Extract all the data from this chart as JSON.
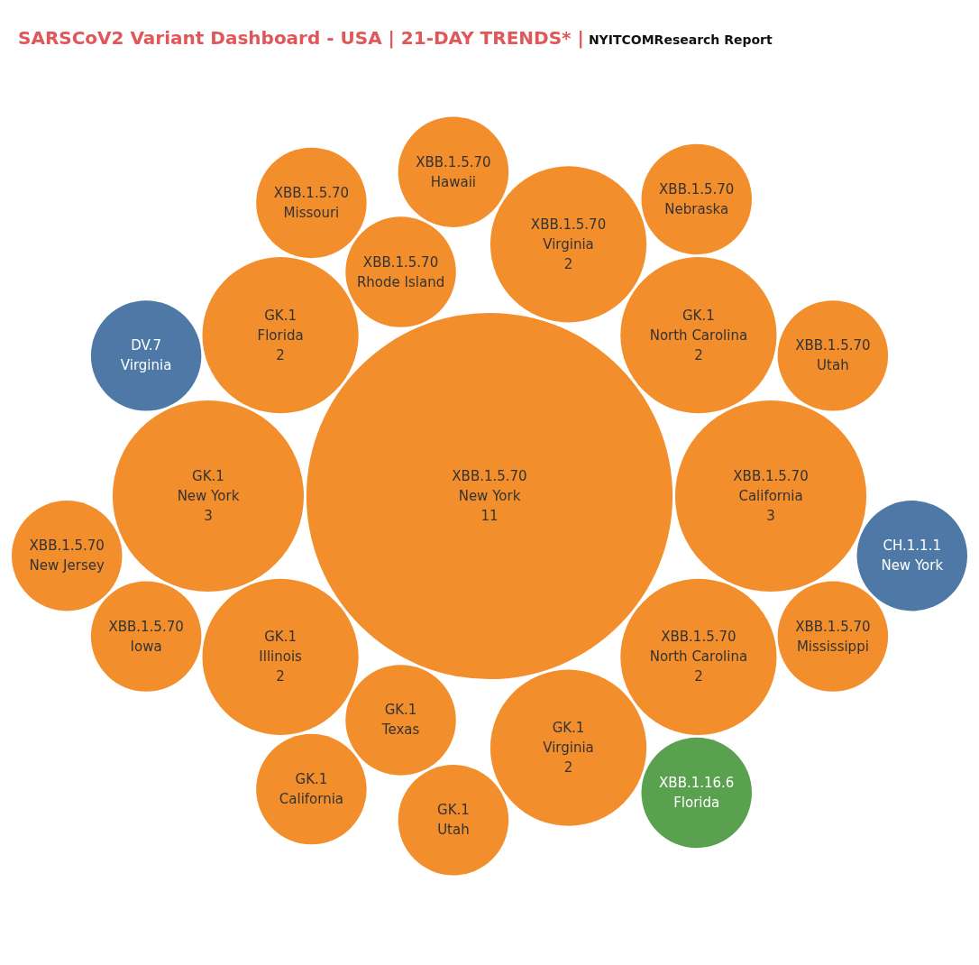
{
  "chart_data": {
    "type": "other",
    "title": "SARSCoV2 Variant Dashboard - USA | 21-DAY TRENDS* |",
    "subtitle": "NYITCOMResearch Report",
    "categories": [
      "XBB.1.5.70\nNorth Carolina",
      "XBB.1.5.70\nRhode Island",
      "GK.1\nTexas",
      "DV.7\nVirginia",
      "GK.1\nNorth Carolina",
      "GK.1\nIllinois",
      "XBB.1.5.70\nIowa",
      "XBB.1.5.70\nMississippi",
      "XBB.1.5.70\nUtah",
      "XBB.1.5.70\nHawaii",
      "GK.1\nUtah",
      "GK.1\nCalifornia",
      "XBB.1.5.70\nCalifornia",
      "XBB.1.5.70\nMissouri",
      "XBB.1.16.6\nFlorida",
      "XBB.1.5.70\nNebraska",
      "GK.1\nFlorida",
      "XBB.1.5.70\nNew Jersey",
      "XBB.1.5.70\nNew York",
      "GK.1\nVirginia",
      "CH.1.1.1\nNew York",
      "GK.1\nNew York",
      "XBB.1.5.70\nVirginia"
    ],
    "values": [
      2,
      null,
      null,
      null,
      2,
      2,
      null,
      null,
      null,
      null,
      null,
      null,
      3,
      null,
      null,
      null,
      2,
      null,
      11,
      2,
      null,
      3,
      2
    ],
    "data_labels": true,
    "colors": [
      "#f28e2b",
      "#f28e2b",
      "#f28e2b",
      "#4e79a7",
      "#f28e2b",
      "#f28e2b",
      "#f28e2b",
      "#f28e2b",
      "#f28e2b",
      "#f28e2b",
      "#f28e2b",
      "#f28e2b",
      "#f28e2b",
      "#f28e2b",
      "#59a14f",
      "#f28e2b",
      "#f28e2b",
      "#f28e2b",
      "#f28e2b",
      "#f28e2b",
      "#4e79a7",
      "#f28e2b",
      "#f28e2b"
    ]
  }
}
